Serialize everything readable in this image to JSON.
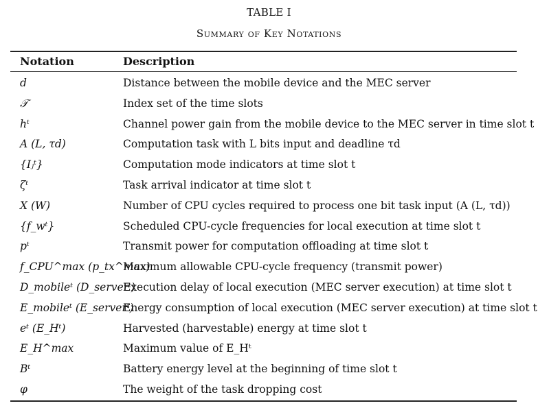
{
  "caption": {
    "label": "TABLE I",
    "title": "Summary of Key Notations"
  },
  "columns": {
    "notation": "Notation",
    "description": "Description"
  },
  "rows": [
    {
      "notation": "d",
      "description": "Distance between the mobile device and the MEC server"
    },
    {
      "notation": "𝒯",
      "description": "Index set of the time slots"
    },
    {
      "notation": "hᵗ",
      "description": "Channel power gain from the mobile device to the MEC server in time slot t"
    },
    {
      "notation": "A (L, τd)",
      "description": "Computation task with L bits input and deadline τd"
    },
    {
      "notation": "{Iⱼᵗ}",
      "description": "Computation mode indicators at time slot t"
    },
    {
      "notation": "ζᵗ",
      "description": "Task arrival indicator at time slot t"
    },
    {
      "notation": "X (W)",
      "description": "Number of CPU cycles required to process one bit task input (A (L, τd))"
    },
    {
      "notation": "{f_wᵗ}",
      "description": "Scheduled CPU-cycle frequencies for local execution at time slot t"
    },
    {
      "notation": "pᵗ",
      "description": "Transmit power for computation offloading at time slot t"
    },
    {
      "notation": "f_CPU^max (p_tx^max)",
      "description": "Maximum allowable CPU-cycle frequency (transmit power)"
    },
    {
      "notation": "D_mobileᵗ (D_serverᵗ)",
      "description": "Execution delay of local execution (MEC server execution) at time slot t"
    },
    {
      "notation": "E_mobileᵗ (E_serverᵗ)",
      "description": "Energy consumption of local execution (MEC server execution) at time slot t"
    },
    {
      "notation": "eᵗ (E_Hᵗ)",
      "description": "Harvested (harvestable) energy at time slot t"
    },
    {
      "notation": "E_H^max",
      "description": "Maximum value of E_Hᵗ"
    },
    {
      "notation": "Bᵗ",
      "description": "Battery energy level at the beginning of time slot t"
    },
    {
      "notation": "φ",
      "description": "The weight of the task dropping cost"
    }
  ]
}
